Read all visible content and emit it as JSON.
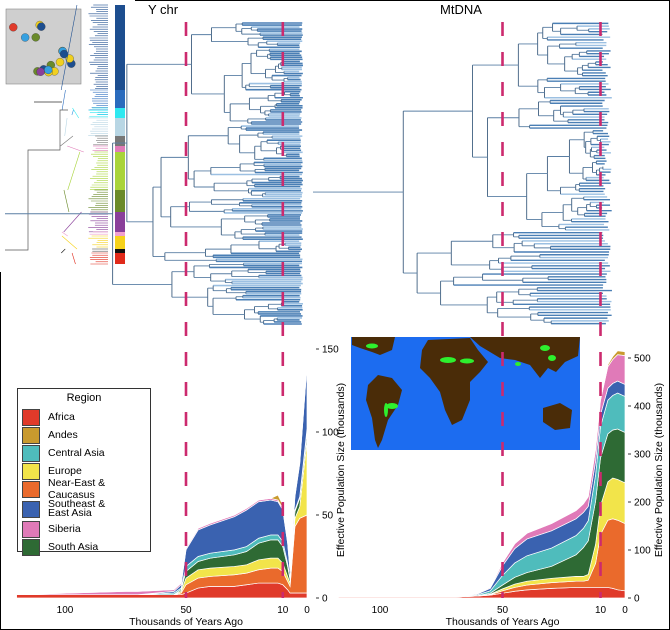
{
  "figure": {
    "ychr_title": "Y chr",
    "mtdna_title": "MtDNA"
  },
  "legend": {
    "title": "Region",
    "items": [
      {
        "label": "Africa",
        "color": "#e03a2a"
      },
      {
        "label": "Andes",
        "color": "#c99a2e"
      },
      {
        "label": "Central Asia",
        "color": "#4fbcbc"
      },
      {
        "label": "Europe",
        "color": "#f2e44a"
      },
      {
        "label": "Near-East & Caucasus",
        "color": "#ea6a2c"
      },
      {
        "label": "Southeast & East Asia",
        "color": "#3a62b0"
      },
      {
        "label": "Siberia",
        "color": "#e07ab8"
      },
      {
        "label": "South Asia",
        "color": "#2e6a34"
      }
    ]
  },
  "colors": {
    "dashed_line": "#cc2a6e",
    "tree": "#4a7fb5",
    "tree_light": "#9cc0e2",
    "ocean": "#1c6cf0",
    "land": "#4a2c08",
    "spots": "#2ef02e"
  },
  "chart_data": [
    {
      "type": "area",
      "title": "Y chr",
      "xlabel": "Thousands of Years Ago",
      "ylabel": "Effective Population Size (thousands)",
      "xlim": [
        125,
        0
      ],
      "ylim": [
        0,
        150
      ],
      "xticks": [
        "100",
        "50",
        "10",
        "0"
      ],
      "yticks": [
        "0",
        "50",
        "100",
        "150"
      ],
      "reference_lines": [
        50,
        10
      ],
      "x": [
        120,
        75,
        70,
        55,
        52,
        50,
        45,
        40,
        30,
        25,
        20,
        15,
        12,
        10,
        8,
        7,
        5,
        3,
        0
      ],
      "series": [
        {
          "name": "Africa",
          "values": [
            2,
            2,
            2,
            2,
            2,
            3,
            6,
            7,
            7,
            8,
            9,
            9,
            9,
            8,
            5,
            3,
            3,
            3,
            3
          ]
        },
        {
          "name": "Near-East & Caucasus",
          "values": [
            0,
            0,
            0,
            0,
            1,
            5,
            6,
            6,
            7,
            7,
            8,
            9,
            9,
            8,
            5,
            4,
            40,
            45,
            47
          ]
        },
        {
          "name": "Europe",
          "values": [
            0,
            0,
            0,
            0,
            1,
            4,
            5,
            5,
            5,
            5,
            6,
            6,
            6,
            5,
            3,
            2,
            5,
            7,
            45
          ]
        },
        {
          "name": "South Asia",
          "values": [
            0,
            0,
            0,
            0,
            1,
            4,
            5,
            6,
            7,
            8,
            10,
            11,
            11,
            10,
            6,
            2,
            4,
            5,
            5
          ]
        },
        {
          "name": "Central Asia",
          "values": [
            0,
            0,
            0,
            1,
            1,
            3,
            3,
            3,
            3,
            3,
            3,
            3,
            3,
            3,
            2,
            1,
            1,
            1,
            2
          ]
        },
        {
          "name": "Southeast & East Asia",
          "values": [
            0,
            0,
            0,
            1,
            2,
            10,
            16,
            17,
            20,
            22,
            22,
            21,
            20,
            19,
            12,
            4,
            8,
            20,
            38
          ]
        },
        {
          "name": "Siberia",
          "values": [
            0,
            2,
            2,
            1,
            1,
            1,
            1,
            1,
            1,
            1,
            1,
            1,
            1,
            1,
            1,
            1,
            1,
            1,
            1
          ]
        },
        {
          "name": "Andes",
          "values": [
            0,
            0,
            0,
            0,
            0,
            0,
            0,
            0,
            0,
            0,
            0,
            0,
            3,
            2,
            1,
            0,
            0,
            0,
            0
          ]
        }
      ]
    },
    {
      "type": "area",
      "title": "MtDNA",
      "xlabel": "Thousands of Years Ago",
      "ylabel": "Effective Population Size (thousands)",
      "xlim": [
        117,
        0
      ],
      "ylim": [
        0,
        530
      ],
      "xticks": [
        "100",
        "50",
        "10",
        "0"
      ],
      "yticks": [
        "0",
        "100",
        "200",
        "300",
        "400",
        "500"
      ],
      "reference_lines": [
        50,
        10
      ],
      "x": [
        117,
        70,
        65,
        60,
        55,
        50,
        45,
        40,
        30,
        20,
        17,
        15,
        12,
        10,
        7,
        5,
        3,
        0
      ],
      "series": [
        {
          "name": "Africa",
          "values": [
            2,
            2,
            3,
            4,
            6,
            10,
            14,
            17,
            20,
            22,
            22,
            22,
            22,
            22,
            22,
            20,
            17,
            15
          ]
        },
        {
          "name": "Near-East & Caucasus",
          "values": [
            0,
            0,
            0,
            0,
            1,
            5,
            8,
            10,
            12,
            13,
            13,
            15,
            50,
            110,
            140,
            145,
            145,
            140
          ]
        },
        {
          "name": "Europe",
          "values": [
            0,
            0,
            0,
            0,
            1,
            4,
            7,
            8,
            9,
            10,
            10,
            12,
            40,
            60,
            80,
            85,
            85,
            85
          ]
        },
        {
          "name": "South Asia",
          "values": [
            0,
            0,
            0,
            1,
            2,
            8,
            14,
            18,
            25,
            45,
            60,
            70,
            90,
            100,
            100,
            100,
            105,
            105
          ]
        },
        {
          "name": "Central Asia",
          "values": [
            0,
            0,
            1,
            2,
            5,
            20,
            30,
            35,
            38,
            40,
            40,
            42,
            55,
            65,
            70,
            72,
            75,
            75
          ]
        },
        {
          "name": "Southeast & East Asia",
          "values": [
            0,
            0,
            1,
            2,
            5,
            20,
            30,
            35,
            36,
            35,
            33,
            30,
            28,
            25,
            25,
            25,
            25,
            25
          ]
        },
        {
          "name": "Siberia",
          "values": [
            0,
            0,
            0,
            1,
            2,
            6,
            10,
            12,
            15,
            17,
            18,
            20,
            25,
            30,
            45,
            50,
            55,
            60
          ]
        },
        {
          "name": "Andes",
          "values": [
            0,
            0,
            0,
            0,
            0,
            0,
            0,
            0,
            0,
            0,
            0,
            0,
            0,
            2,
            4,
            6,
            8,
            8
          ]
        }
      ]
    }
  ]
}
